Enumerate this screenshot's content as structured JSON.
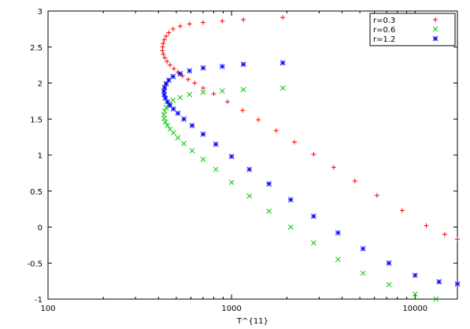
{
  "chart_data": {
    "type": "scatter",
    "title": "",
    "xlabel": "T^{11}",
    "ylabel": "",
    "xscale": "log",
    "xlim": [
      100,
      17000
    ],
    "ylim": [
      -1,
      3
    ],
    "x_ticks": [
      100,
      1000,
      10000
    ],
    "x_tick_labels": [
      "100",
      "1000",
      "10000"
    ],
    "y_ticks": [
      -1,
      -0.5,
      0,
      0.5,
      1,
      1.5,
      2,
      2.5,
      3
    ],
    "y_tick_labels": [
      "-1",
      "-0.5",
      "0",
      "0.5",
      "1",
      "1.5",
      "2",
      "2.5",
      "3"
    ],
    "grid": false,
    "legend_position": "top-right",
    "series": [
      {
        "name": "r=0.3",
        "color": "#ff0000",
        "marker": "plus",
        "points": [
          [
            1900,
            2.91
          ],
          [
            1160,
            2.88
          ],
          [
            890,
            2.86
          ],
          [
            700,
            2.84
          ],
          [
            590,
            2.82
          ],
          [
            525,
            2.79
          ],
          [
            480,
            2.75
          ],
          [
            455,
            2.7
          ],
          [
            440,
            2.65
          ],
          [
            430,
            2.6
          ],
          [
            424,
            2.55
          ],
          [
            421,
            2.5
          ],
          [
            420,
            2.45
          ],
          [
            425,
            2.4
          ],
          [
            433,
            2.35
          ],
          [
            445,
            2.3
          ],
          [
            462,
            2.25
          ],
          [
            485,
            2.2
          ],
          [
            510,
            2.15
          ],
          [
            540,
            2.1
          ],
          [
            580,
            2.05
          ],
          [
            630,
            2.0
          ],
          [
            700,
            1.93
          ],
          [
            800,
            1.85
          ],
          [
            950,
            1.74
          ],
          [
            1150,
            1.62
          ],
          [
            1400,
            1.49
          ],
          [
            1750,
            1.34
          ],
          [
            2200,
            1.18
          ],
          [
            2800,
            1.01
          ],
          [
            3600,
            0.83
          ],
          [
            4700,
            0.64
          ],
          [
            6200,
            0.44
          ],
          [
            8500,
            0.23
          ],
          [
            11500,
            0.02
          ],
          [
            14500,
            -0.1
          ],
          [
            17000,
            -0.17
          ]
        ]
      },
      {
        "name": "r=0.6",
        "color": "#00cc00",
        "marker": "cross",
        "points": [
          [
            1900,
            1.93
          ],
          [
            1160,
            1.91
          ],
          [
            890,
            1.89
          ],
          [
            700,
            1.87
          ],
          [
            590,
            1.84
          ],
          [
            525,
            1.8
          ],
          [
            480,
            1.76
          ],
          [
            455,
            1.71
          ],
          [
            440,
            1.66
          ],
          [
            432,
            1.61
          ],
          [
            428,
            1.56
          ],
          [
            430,
            1.51
          ],
          [
            436,
            1.46
          ],
          [
            447,
            1.41
          ],
          [
            462,
            1.36
          ],
          [
            482,
            1.31
          ],
          [
            510,
            1.24
          ],
          [
            550,
            1.16
          ],
          [
            610,
            1.06
          ],
          [
            700,
            0.94
          ],
          [
            820,
            0.8
          ],
          [
            1000,
            0.62
          ],
          [
            1250,
            0.43
          ],
          [
            1600,
            0.22
          ],
          [
            2100,
            0.0
          ],
          [
            2800,
            -0.22
          ],
          [
            3800,
            -0.45
          ],
          [
            5200,
            -0.64
          ],
          [
            7200,
            -0.8
          ],
          [
            10000,
            -0.93
          ],
          [
            13000,
            -1.0
          ]
        ]
      },
      {
        "name": "r=1.2",
        "color": "#0000ff",
        "marker": "star",
        "points": [
          [
            1900,
            2.28
          ],
          [
            1160,
            2.26
          ],
          [
            890,
            2.23
          ],
          [
            700,
            2.21
          ],
          [
            590,
            2.17
          ],
          [
            525,
            2.13
          ],
          [
            480,
            2.09
          ],
          [
            455,
            2.04
          ],
          [
            440,
            1.99
          ],
          [
            432,
            1.94
          ],
          [
            428,
            1.89
          ],
          [
            430,
            1.84
          ],
          [
            436,
            1.79
          ],
          [
            447,
            1.74
          ],
          [
            462,
            1.69
          ],
          [
            482,
            1.64
          ],
          [
            510,
            1.58
          ],
          [
            550,
            1.5
          ],
          [
            610,
            1.41
          ],
          [
            700,
            1.29
          ],
          [
            820,
            1.15
          ],
          [
            1000,
            0.98
          ],
          [
            1250,
            0.8
          ],
          [
            1600,
            0.6
          ],
          [
            2100,
            0.38
          ],
          [
            2800,
            0.15
          ],
          [
            3800,
            -0.08
          ],
          [
            5200,
            -0.3
          ],
          [
            7200,
            -0.5
          ],
          [
            10000,
            -0.67
          ],
          [
            13500,
            -0.76
          ],
          [
            17000,
            -0.79
          ]
        ]
      }
    ]
  }
}
